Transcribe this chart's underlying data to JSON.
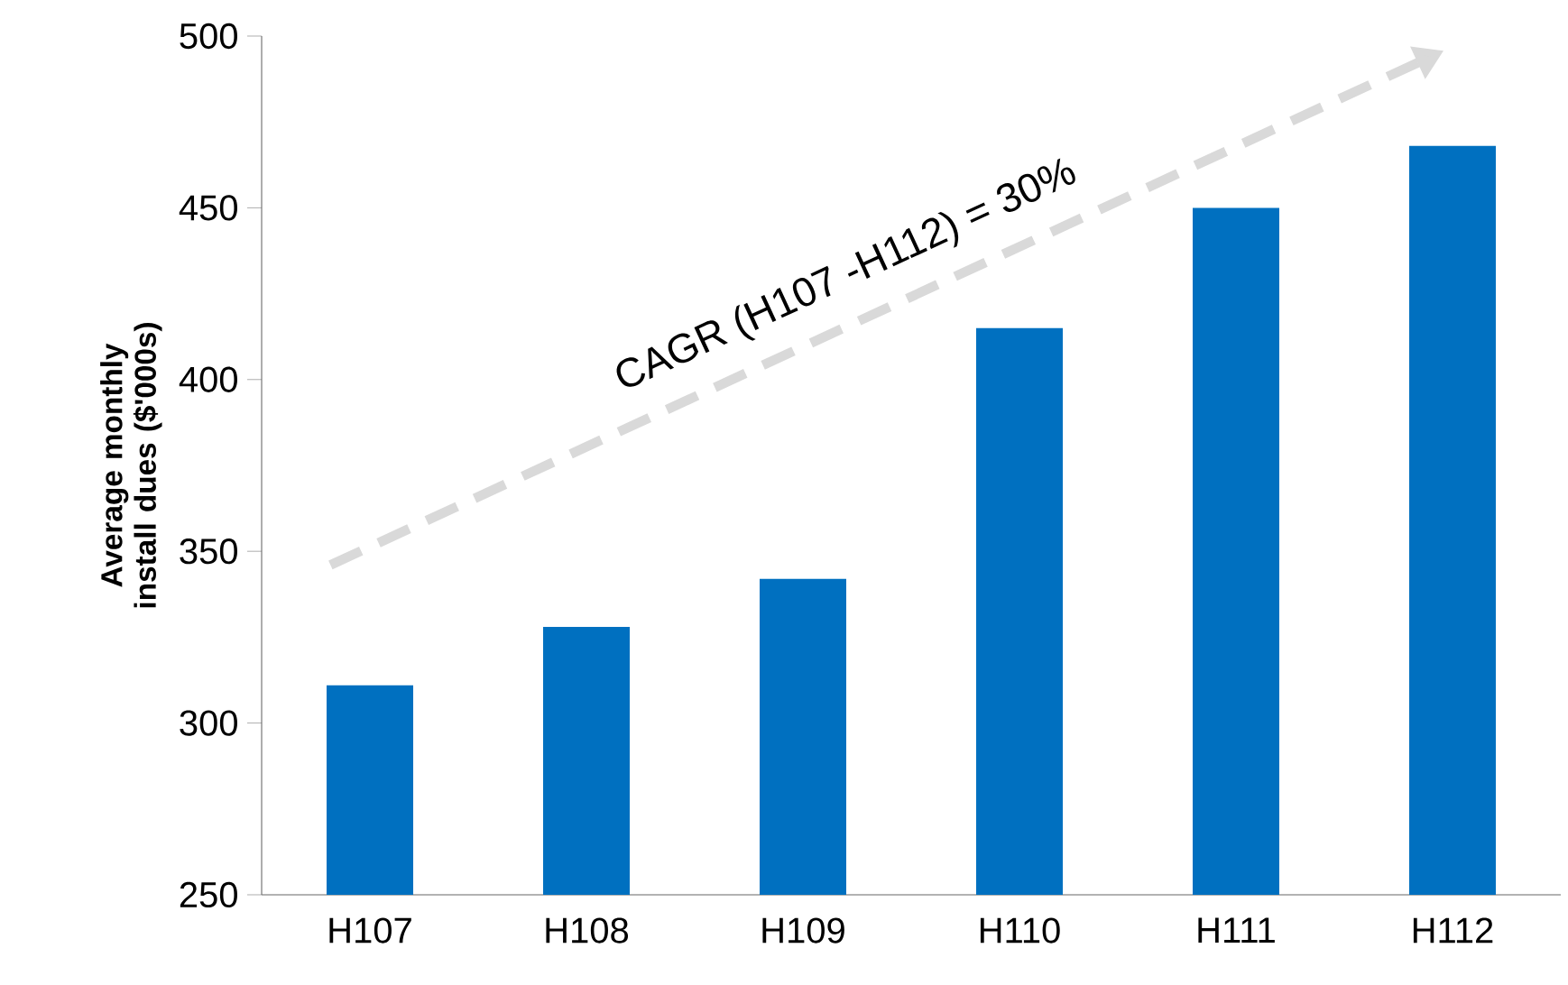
{
  "chart_data": {
    "type": "bar",
    "ylabel": "Average monthly install dues ($'000s)",
    "categories": [
      "H107",
      "H108",
      "H109",
      "H110",
      "H111",
      "H112"
    ],
    "values": [
      311,
      328,
      342,
      415,
      450,
      468
    ],
    "color": "#0070c0",
    "ylim": [
      250,
      500
    ],
    "yticks": [
      250,
      300,
      350,
      400,
      450,
      500
    ],
    "annotations": [
      "CAGR (H107 -H112) = 30%"
    ]
  }
}
